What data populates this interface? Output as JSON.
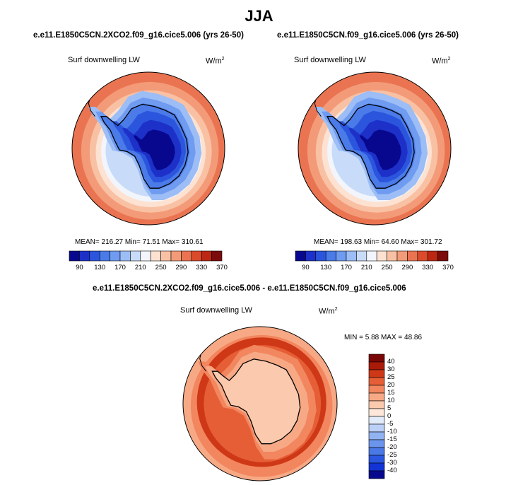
{
  "page": {
    "title": "JJA"
  },
  "colors": {
    "abs_scale": [
      "#08088f",
      "#1d31c9",
      "#2c55dd",
      "#4a7be8",
      "#6f9bf0",
      "#9cbdf5",
      "#c8dcf9",
      "#f2f5fb",
      "#fde2d2",
      "#f9c1a4",
      "#f39b78",
      "#ea7451",
      "#dc4a2c",
      "#bb2712",
      "#7c0b0b"
    ],
    "diff_scale": [
      "#08088f",
      "#1233d6",
      "#2a56e0",
      "#4a78e6",
      "#6b95ec",
      "#92b3f1",
      "#bbd0f6",
      "#e1ebfa",
      "#fde7da",
      "#fbc9ad",
      "#f7a985",
      "#f2865f",
      "#e55e36",
      "#cf3816",
      "#a91a08",
      "#7a0707"
    ]
  },
  "chart_data": [
    {
      "type": "polar-contour",
      "case": "e.e11.E1850C5CN.2XCO2.f09_g16.cice5.006 (yrs 26-50)",
      "variable": "Surf downwelling LW",
      "units_base": "W/m",
      "units_exp": "2",
      "stats_text": "MEAN= 216.27  Min=  71.51  Max= 310.61",
      "mean": 216.27,
      "min": 71.51,
      "max": 310.61,
      "colorbar_ticks": [
        "90",
        "130",
        "170",
        "210",
        "250",
        "290",
        "330",
        "370"
      ]
    },
    {
      "type": "polar-contour",
      "case": "e.e11.E1850C5CN.f09_g16.cice5.006 (yrs 26-50)",
      "variable": "Surf downwelling LW",
      "units_base": "W/m",
      "units_exp": "2",
      "stats_text": "MEAN= 198.63  Min=  64.60  Max= 301.72",
      "mean": 198.63,
      "min": 64.6,
      "max": 301.72,
      "colorbar_ticks": [
        "90",
        "130",
        "170",
        "210",
        "250",
        "290",
        "330",
        "370"
      ]
    },
    {
      "type": "polar-contour",
      "case": "e.e11.E1850C5CN.2XCO2.f09_g16.cice5.006 - e.e11.E1850C5CN.f09_g16.cice5.006",
      "variable": "Surf downwelling LW",
      "units_base": "W/m",
      "units_exp": "2",
      "stats_text": "MIN =   5.88 MAX =  48.86",
      "min": 5.88,
      "max": 48.86,
      "colorbar_ticks": [
        "40",
        "30",
        "25",
        "20",
        "15",
        "10",
        "5",
        "0",
        "-5",
        "-10",
        "-15",
        "-20",
        "-25",
        "-30",
        "-40"
      ]
    }
  ]
}
